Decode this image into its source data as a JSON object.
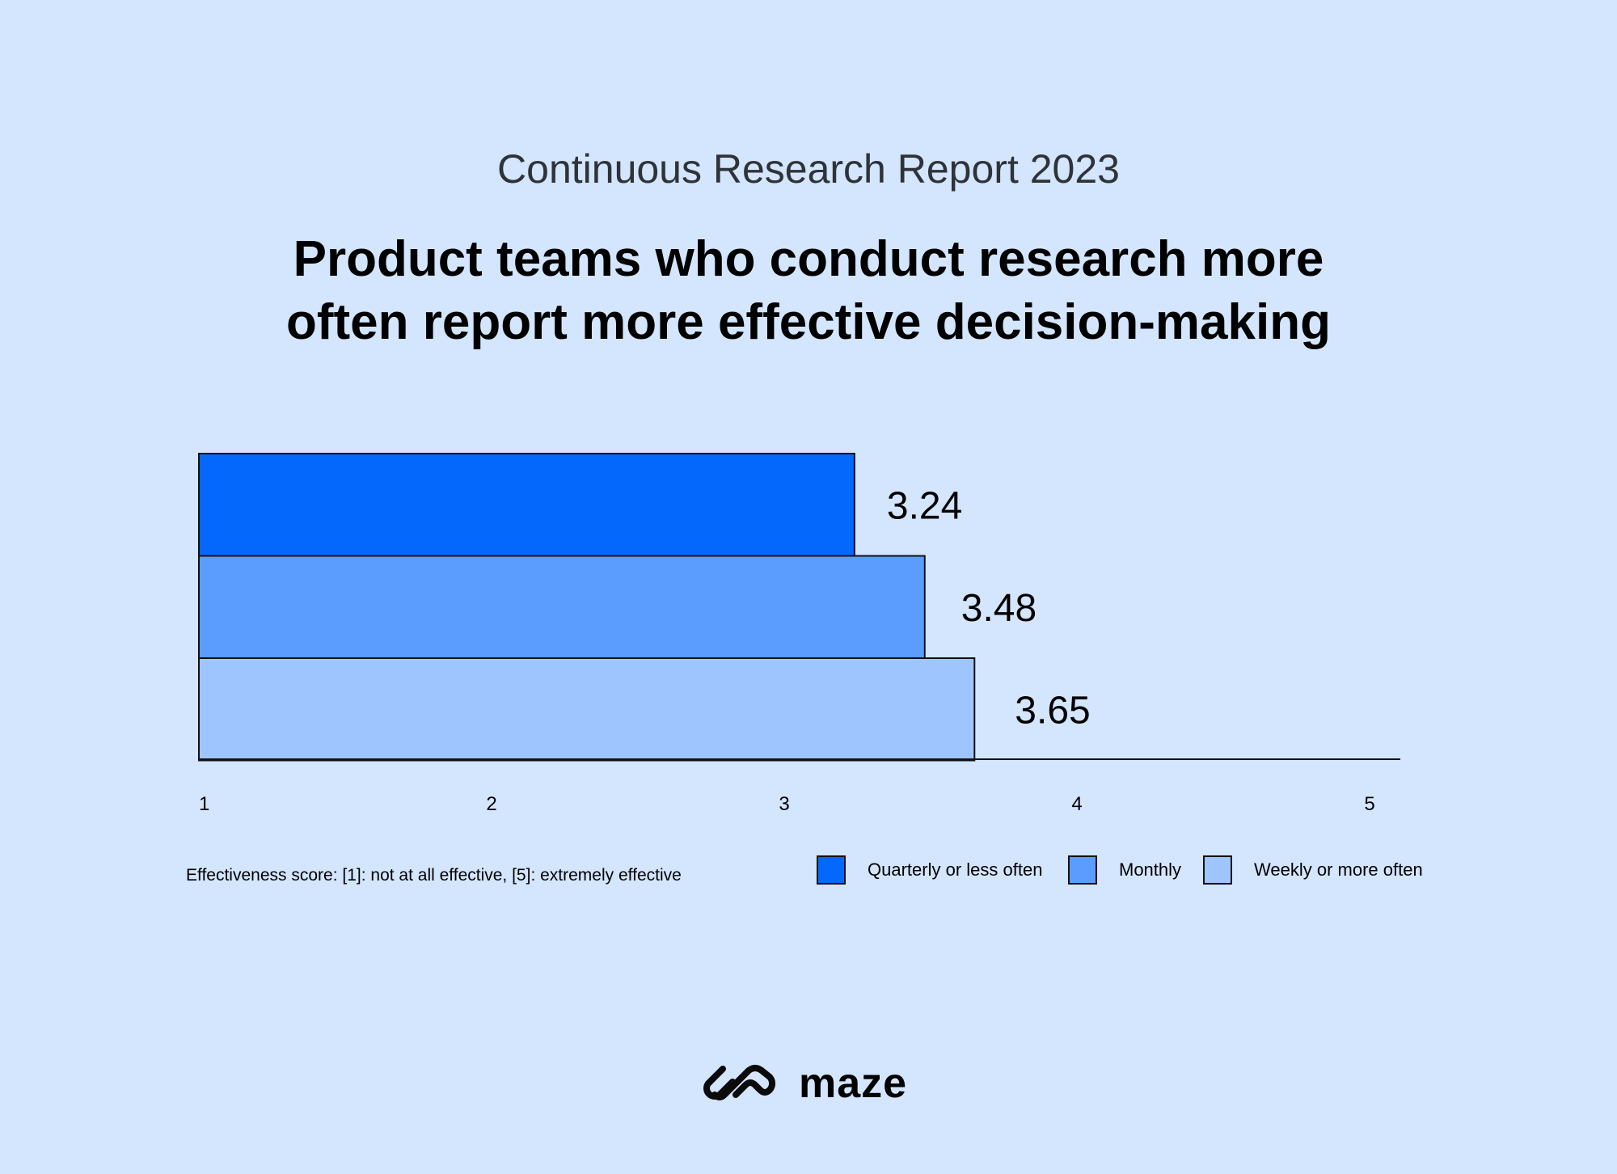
{
  "header": {
    "subtitle": "Continuous Research Report 2023",
    "title_line1": "Product teams who conduct research more",
    "title_line2": "often report more effective decision-making"
  },
  "chart_data": {
    "type": "bar",
    "orientation": "horizontal",
    "series": [
      {
        "name": "Quarterly or less often",
        "value": 3.24,
        "label": "3.24",
        "color": "#0568fd"
      },
      {
        "name": "Monthly",
        "value": 3.48,
        "label": "3.48",
        "color": "#5a9dff"
      },
      {
        "name": "Weekly or more often",
        "value": 3.65,
        "label": "3.65",
        "color": "#9fc5ff"
      }
    ],
    "xlim": [
      1,
      5
    ],
    "xticks": [
      "1",
      "2",
      "3",
      "4",
      "5"
    ],
    "grid": false,
    "legend_position": "bottom-right",
    "footnote": "Effectiveness score: [1]: not at all effective, [5]: extremely effective"
  },
  "logo": {
    "text": "maze"
  },
  "colors": {
    "background": "#d4e5fe"
  }
}
